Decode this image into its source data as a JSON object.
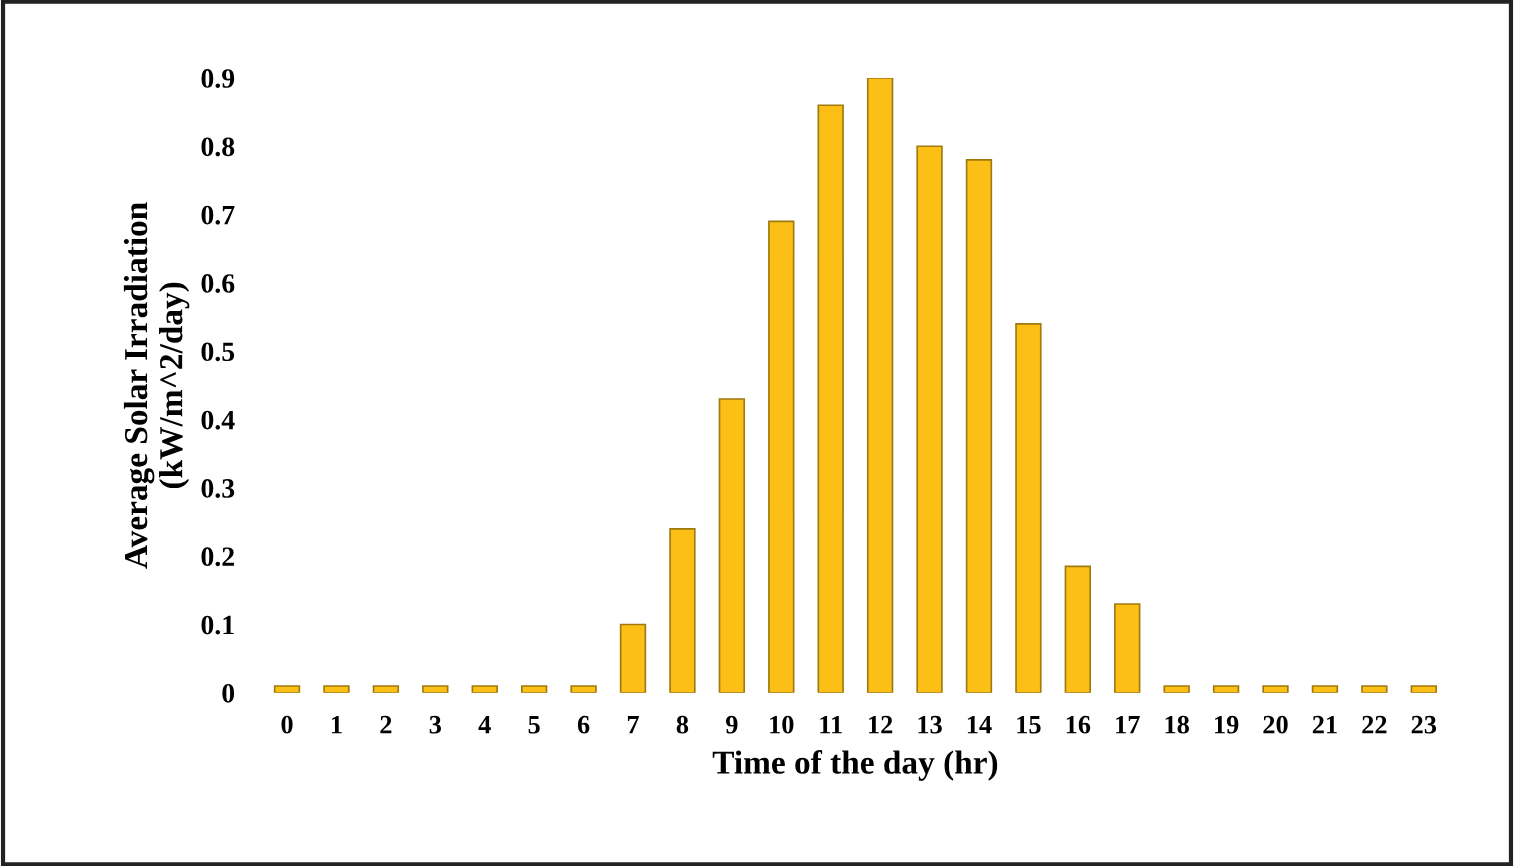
{
  "chart_data": {
    "type": "bar",
    "xlabel": "Time of the day (hr)",
    "ylabel": "Average Solar Irradiation\n(kW/m^2/day)",
    "categories": [
      "0",
      "1",
      "2",
      "3",
      "4",
      "5",
      "6",
      "7",
      "8",
      "9",
      "10",
      "11",
      "12",
      "13",
      "14",
      "15",
      "16",
      "17",
      "18",
      "19",
      "20",
      "21",
      "22",
      "23"
    ],
    "values": [
      0.01,
      0.01,
      0.01,
      0.01,
      0.01,
      0.01,
      0.01,
      0.1,
      0.24,
      0.43,
      0.69,
      0.86,
      0.9,
      0.8,
      0.78,
      0.54,
      0.185,
      0.13,
      0.01,
      0.01,
      0.01,
      0.01,
      0.01,
      0.01
    ],
    "color": "#fbbf16",
    "ylim": [
      0,
      0.9
    ],
    "yticks": [
      0,
      0.1,
      0.2,
      0.3,
      0.4,
      0.5,
      0.6,
      0.7,
      0.8,
      0.9
    ],
    "grid": false,
    "legend": false
  }
}
